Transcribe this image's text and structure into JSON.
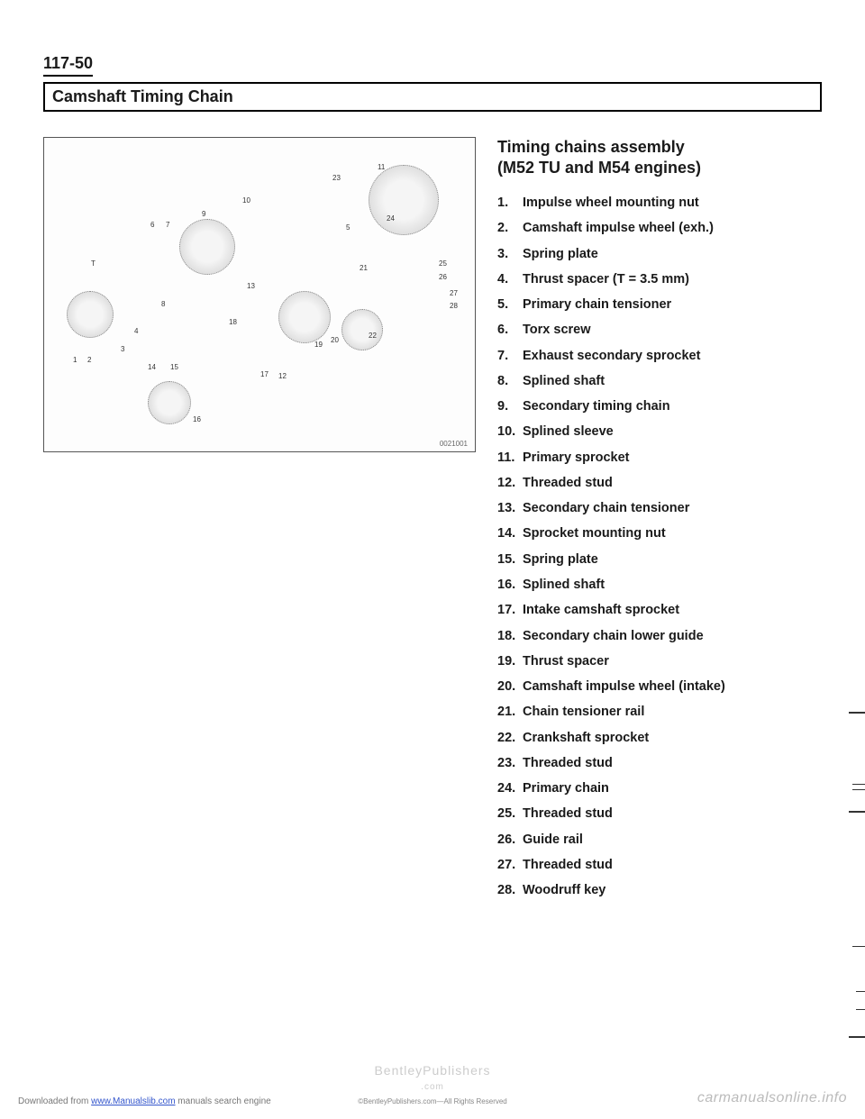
{
  "page_number": "117-50",
  "section_title": "Camshaft Timing Chain",
  "diagram": {
    "code": "0021001",
    "callouts": [
      "1",
      "2",
      "3",
      "4",
      "5",
      "6",
      "7",
      "8",
      "9",
      "10",
      "11",
      "12",
      "13",
      "14",
      "15",
      "16",
      "17",
      "18",
      "19",
      "20",
      "21",
      "22",
      "23",
      "24",
      "25",
      "26",
      "27",
      "28",
      "T"
    ]
  },
  "parts_heading_line1": "Timing chains assembly",
  "parts_heading_line2": "(M52 TU and M54 engines)",
  "parts": [
    {
      "n": "1.",
      "t": "Impulse wheel mounting nut"
    },
    {
      "n": "2.",
      "t": "Camshaft impulse wheel (exh.)"
    },
    {
      "n": "3.",
      "t": "Spring plate"
    },
    {
      "n": "4.",
      "t": "Thrust spacer (T = 3.5 mm)"
    },
    {
      "n": "5.",
      "t": "Primary chain tensioner"
    },
    {
      "n": "6.",
      "t": "Torx screw"
    },
    {
      "n": "7.",
      "t": "Exhaust secondary sprocket"
    },
    {
      "n": "8.",
      "t": "Splined shaft"
    },
    {
      "n": "9.",
      "t": "Secondary timing chain"
    },
    {
      "n": "10.",
      "t": "Splined sleeve"
    },
    {
      "n": "11.",
      "t": "Primary sprocket"
    },
    {
      "n": "12.",
      "t": "Threaded stud"
    },
    {
      "n": "13.",
      "t": "Secondary chain tensioner"
    },
    {
      "n": "14.",
      "t": "Sprocket mounting nut"
    },
    {
      "n": "15.",
      "t": "Spring plate"
    },
    {
      "n": "16.",
      "t": "Splined shaft"
    },
    {
      "n": "17.",
      "t": "Intake camshaft sprocket"
    },
    {
      "n": "18.",
      "t": "Secondary chain lower guide"
    },
    {
      "n": "19.",
      "t": "Thrust spacer"
    },
    {
      "n": "20.",
      "t": "Camshaft impulse wheel (intake)"
    },
    {
      "n": "21.",
      "t": "Chain tensioner rail"
    },
    {
      "n": "22.",
      "t": "Crankshaft sprocket"
    },
    {
      "n": "23.",
      "t": "Threaded stud"
    },
    {
      "n": "24.",
      "t": "Primary chain"
    },
    {
      "n": "25.",
      "t": "Threaded stud"
    },
    {
      "n": "26.",
      "t": "Guide rail"
    },
    {
      "n": "27.",
      "t": "Threaded stud"
    },
    {
      "n": "28.",
      "t": "Woodruff key"
    }
  ],
  "footer": {
    "left_prefix": "Downloaded from ",
    "left_link": "www.Manualslib.com",
    "left_suffix": " manuals search engine",
    "center_top": "BentleyPublishers",
    "center_mid": ".com",
    "center_sub": "©BentleyPublishers.com—All Rights Reserved",
    "right": "carmanualsonline.info"
  }
}
